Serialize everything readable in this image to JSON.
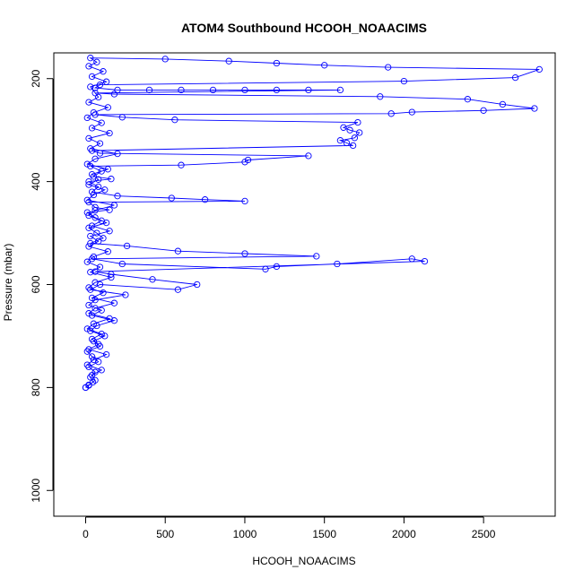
{
  "chart_data": {
    "type": "scatter",
    "title": "ATOM4 Southbound HCOOH_NOAACIMS",
    "xlabel": "HCOOH_NOAACIMS",
    "ylabel": "Pressure (mbar)",
    "xlim": [
      -200,
      2950
    ],
    "ylim": [
      1050,
      150
    ],
    "y_reversed": true,
    "xticks": [
      0,
      500,
      1000,
      1500,
      2000,
      2500
    ],
    "yticks": [
      200,
      400,
      600,
      800,
      1000
    ],
    "grid": false,
    "marker": "open-circle",
    "connected": true,
    "color": "#0000ff",
    "series": [
      {
        "points": [
          [
            0,
            800
          ],
          [
            20,
            795
          ],
          [
            45,
            790
          ],
          [
            30,
            780
          ],
          [
            60,
            770
          ],
          [
            20,
            760
          ],
          [
            80,
            750
          ],
          [
            40,
            740
          ],
          [
            10,
            730
          ],
          [
            90,
            720
          ],
          [
            50,
            710
          ],
          [
            120,
            700
          ],
          [
            30,
            690
          ],
          [
            70,
            680
          ],
          [
            180,
            670
          ],
          [
            40,
            660
          ],
          [
            100,
            650
          ],
          [
            20,
            640
          ],
          [
            60,
            630
          ],
          [
            250,
            620
          ],
          [
            30,
            610
          ],
          [
            90,
            600
          ],
          [
            580,
            610
          ],
          [
            700,
            600
          ],
          [
            420,
            590
          ],
          [
            160,
            580
          ],
          [
            60,
            575
          ],
          [
            2130,
            555
          ],
          [
            2050,
            550
          ],
          [
            1580,
            560
          ],
          [
            1200,
            565
          ],
          [
            1130,
            570
          ],
          [
            230,
            560
          ],
          [
            40,
            550
          ],
          [
            1450,
            545
          ],
          [
            1000,
            540
          ],
          [
            580,
            535
          ],
          [
            260,
            525
          ],
          [
            30,
            520
          ],
          [
            110,
            510
          ],
          [
            70,
            500
          ],
          [
            20,
            490
          ],
          [
            130,
            480
          ],
          [
            60,
            470
          ],
          [
            10,
            460
          ],
          [
            150,
            455
          ],
          [
            60,
            450
          ],
          [
            20,
            440
          ],
          [
            1000,
            438
          ],
          [
            750,
            435
          ],
          [
            540,
            432
          ],
          [
            200,
            428
          ],
          [
            40,
            420
          ],
          [
            80,
            410
          ],
          [
            20,
            400
          ],
          [
            160,
            395
          ],
          [
            50,
            390
          ],
          [
            100,
            380
          ],
          [
            30,
            370
          ],
          [
            600,
            368
          ],
          [
            1000,
            362
          ],
          [
            1020,
            358
          ],
          [
            1400,
            350
          ],
          [
            90,
            345
          ],
          [
            40,
            340
          ],
          [
            1680,
            330
          ],
          [
            1640,
            325
          ],
          [
            1600,
            320
          ],
          [
            1690,
            315
          ],
          [
            1720,
            305
          ],
          [
            1660,
            300
          ],
          [
            1620,
            295
          ],
          [
            1710,
            285
          ],
          [
            560,
            280
          ],
          [
            230,
            275
          ],
          [
            60,
            270
          ],
          [
            1920,
            268
          ],
          [
            2050,
            265
          ],
          [
            2500,
            262
          ],
          [
            2820,
            258
          ],
          [
            2620,
            250
          ],
          [
            2400,
            240
          ],
          [
            1850,
            235
          ],
          [
            180,
            230
          ],
          [
            60,
            228
          ],
          [
            1600,
            222
          ],
          [
            1400,
            222
          ],
          [
            1200,
            222
          ],
          [
            1000,
            222
          ],
          [
            800,
            222
          ],
          [
            600,
            222
          ],
          [
            400,
            222
          ],
          [
            200,
            222
          ],
          [
            60,
            218
          ],
          [
            90,
            212
          ],
          [
            2000,
            205
          ],
          [
            2700,
            198
          ],
          [
            2850,
            182
          ],
          [
            1900,
            178
          ],
          [
            1500,
            174
          ],
          [
            1200,
            170
          ],
          [
            900,
            166
          ],
          [
            500,
            162
          ],
          [
            30,
            160
          ],
          [
            70,
            168
          ],
          [
            20,
            176
          ],
          [
            110,
            186
          ],
          [
            40,
            196
          ],
          [
            130,
            206
          ],
          [
            30,
            216
          ],
          [
            80,
            236
          ],
          [
            20,
            246
          ],
          [
            140,
            256
          ],
          [
            50,
            266
          ],
          [
            10,
            276
          ],
          [
            100,
            286
          ],
          [
            40,
            296
          ],
          [
            150,
            306
          ],
          [
            20,
            316
          ],
          [
            90,
            326
          ],
          [
            30,
            336
          ],
          [
            200,
            346
          ],
          [
            60,
            356
          ],
          [
            10,
            366
          ],
          [
            140,
            376
          ],
          [
            40,
            386
          ],
          [
            80,
            396
          ],
          [
            20,
            406
          ],
          [
            120,
            416
          ],
          [
            50,
            426
          ],
          [
            10,
            436
          ],
          [
            180,
            446
          ],
          [
            60,
            456
          ],
          [
            20,
            466
          ],
          [
            100,
            476
          ],
          [
            40,
            486
          ],
          [
            150,
            496
          ],
          [
            30,
            506
          ],
          [
            80,
            516
          ],
          [
            20,
            526
          ],
          [
            140,
            536
          ],
          [
            50,
            546
          ],
          [
            10,
            556
          ],
          [
            90,
            566
          ],
          [
            30,
            576
          ],
          [
            160,
            586
          ],
          [
            60,
            596
          ],
          [
            20,
            606
          ],
          [
            110,
            616
          ],
          [
            40,
            626
          ],
          [
            180,
            636
          ],
          [
            60,
            646
          ],
          [
            20,
            656
          ],
          [
            150,
            666
          ],
          [
            50,
            676
          ],
          [
            10,
            686
          ],
          [
            100,
            696
          ],
          [
            40,
            706
          ],
          [
            80,
            716
          ],
          [
            20,
            726
          ],
          [
            130,
            736
          ],
          [
            50,
            746
          ],
          [
            10,
            756
          ],
          [
            100,
            766
          ],
          [
            40,
            776
          ],
          [
            60,
            786
          ],
          [
            20,
            796
          ],
          [
            0,
            800
          ]
        ]
      }
    ]
  }
}
